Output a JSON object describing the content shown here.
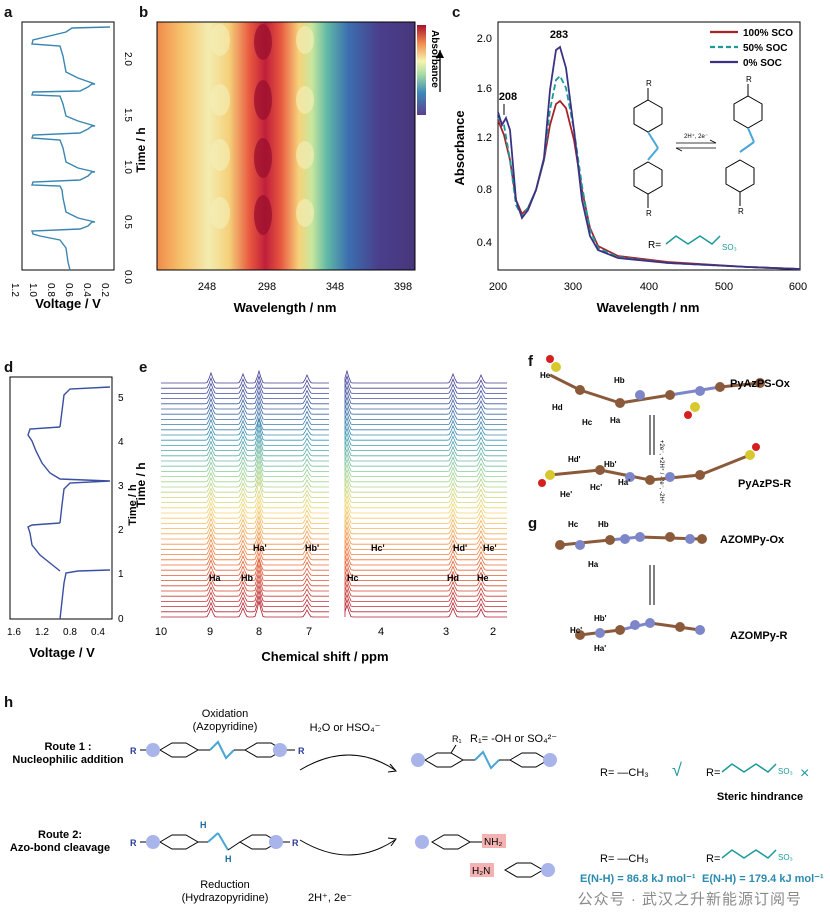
{
  "panels": {
    "a": {
      "label": "a",
      "xlabel": "Voltage / V",
      "ylabel": "Time / h",
      "xticks": [
        "1.2",
        "1.0",
        "0.8",
        "0.6",
        "0.4",
        "0.2"
      ],
      "yticks": [
        "0.0",
        "0.5",
        "1.0",
        "1.5",
        "2.0"
      ],
      "color": "#3a86b0"
    },
    "b": {
      "label": "b",
      "xlabel": "Wavelength / nm",
      "ylabel": "Time / h",
      "xticks": [
        "248",
        "298",
        "348",
        "398"
      ],
      "colorbar_label": "Absorbance"
    },
    "c": {
      "label": "c",
      "xlabel": "Wavelength / nm",
      "ylabel": "Absorbance",
      "xticks": [
        "200",
        "300",
        "400",
        "500",
        "600"
      ],
      "yticks": [
        "0.4",
        "0.8",
        "1.2",
        "1.6",
        "2.0"
      ],
      "peak_labels": [
        "283",
        "208"
      ],
      "legend": [
        {
          "name": "100% SCO",
          "color": "#a8222a"
        },
        {
          "name": "50% SOC",
          "color": "#1a9a9a"
        },
        {
          "name": "0% SOC",
          "color": "#3b3382"
        }
      ],
      "reaction": "2H⁺, 2e⁻",
      "r_label": "R="
    },
    "d": {
      "label": "d",
      "xlabel": "Voltage / V",
      "ylabel": "Time / h",
      "xticks": [
        "1.6",
        "1.2",
        "0.8",
        "0.4"
      ],
      "yticks": [
        "0",
        "1",
        "2",
        "3",
        "4",
        "5"
      ],
      "color": "#3a4fa0"
    },
    "e": {
      "label": "e",
      "xlabel": "Chemical shift / ppm",
      "ylabel": "Time / h",
      "xticks": [
        "10",
        "9",
        "8",
        "7",
        "4",
        "3",
        "2"
      ],
      "peak_top": [
        "Ha'",
        "Hb'",
        "Hc'",
        "Hd'",
        "He'"
      ],
      "peak_bottom": [
        "Ha",
        "Hb",
        "Hc",
        "Hd",
        "He"
      ]
    },
    "f": {
      "label": "f",
      "name_ox": "PyAzPS-Ox",
      "name_r": "PyAzPS-R",
      "arrow": "+2e⁻, +2H⁺ / -2e⁻, -2H⁺",
      "atoms": [
        "Ha",
        "Hb",
        "Hc",
        "Hd",
        "He",
        "Ha'",
        "Hb'",
        "Hc'",
        "Hd'",
        "He'"
      ]
    },
    "g": {
      "label": "g",
      "name_ox": "AZOMPy-Ox",
      "name_r": "AZOMPy-R",
      "atoms": [
        "Ha",
        "Hb",
        "Hc",
        "Ha'",
        "Hb'",
        "Hc'"
      ]
    },
    "h": {
      "label": "h",
      "route1": "Route 1 :",
      "route1_sub": "Nucleophilic addition",
      "route2": "Route 2:",
      "route2_sub": "Azo-bond cleavage",
      "oxidation": "Oxidation",
      "oxidation_sub": "(Azopyridine)",
      "reduction": "Reduction",
      "reduction_sub": "(Hydrazopyridine)",
      "reagent_ox": "H₂O or  HSO₄⁻",
      "reagent_red": "2H⁺, 2e⁻",
      "r1_def": "R₁= -OH or SO₄²⁻",
      "r1_atom": "R₁",
      "r_methyl": "R= —CH₃",
      "r_sulfo": "R=",
      "check": "√",
      "cross": "×",
      "steric": "Steric hindrance",
      "nh2": "NH₂",
      "h2n": "H₂N",
      "energy1": "E(N-H) = 86.8 kJ mol⁻¹",
      "energy2": "E(N-H) = 179.4 kJ mol⁻¹",
      "r_letter": "R",
      "n_letter": "N",
      "h_letter": "H",
      "so3": "SO₃"
    }
  },
  "watermark": "公众号 · 武汉之升新能源订阅号"
}
